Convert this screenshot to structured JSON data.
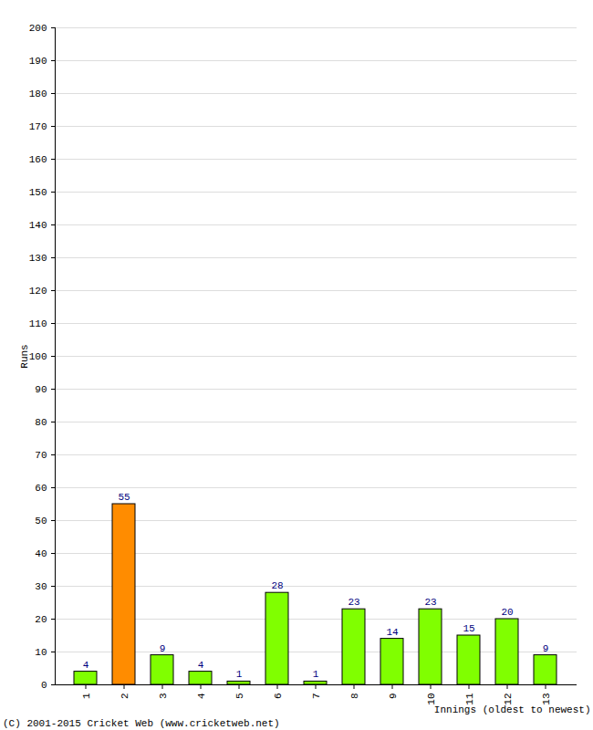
{
  "chart_data": {
    "type": "bar",
    "categories": [
      "1",
      "2",
      "3",
      "4",
      "5",
      "6",
      "7",
      "8",
      "9",
      "10",
      "11",
      "12",
      "13"
    ],
    "values": [
      4,
      55,
      9,
      4,
      1,
      28,
      1,
      23,
      14,
      23,
      15,
      20,
      9
    ],
    "colors": [
      "#80ff00",
      "#ff8c00",
      "#80ff00",
      "#80ff00",
      "#80ff00",
      "#80ff00",
      "#80ff00",
      "#80ff00",
      "#80ff00",
      "#80ff00",
      "#80ff00",
      "#80ff00",
      "#80ff00"
    ],
    "x_label": "Innings (oldest to newest)",
    "y_label": "Runs",
    "caption": "(C) 2001-2015 Cricket Web (www.cricketweb.net)",
    "ylim": [
      0,
      200
    ],
    "yticks": [
      0,
      10,
      20,
      30,
      40,
      50,
      60,
      70,
      80,
      90,
      100,
      110,
      120,
      130,
      140,
      150,
      160,
      170,
      180,
      190,
      200
    ],
    "grid": true,
    "data_labels": true
  }
}
